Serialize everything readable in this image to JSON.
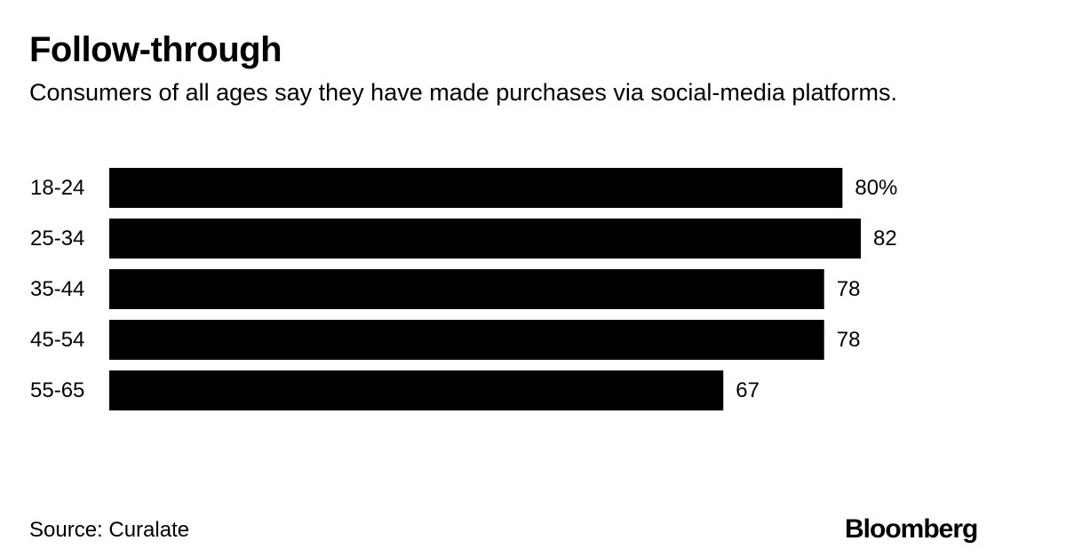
{
  "header": {
    "title": "Follow-through",
    "subtitle": "Consumers of all ages say they have made purchases via social-media platforms."
  },
  "chart_data": {
    "type": "bar",
    "orientation": "horizontal",
    "title": "Follow-through",
    "subtitle": "Consumers of all ages say they have made purchases via social-media platforms.",
    "categories": [
      "18-24",
      "25-34",
      "35-44",
      "45-54",
      "55-65"
    ],
    "values": [
      80,
      82,
      78,
      78,
      67
    ],
    "value_labels": [
      "80%",
      "82",
      "78",
      "78",
      "67"
    ],
    "unit": "%",
    "xlim": [
      0,
      82
    ],
    "bar_color": "#000000",
    "grid": false,
    "legend": "none"
  },
  "footer": {
    "source": "Source: Curalate",
    "brand": "Bloomberg"
  }
}
